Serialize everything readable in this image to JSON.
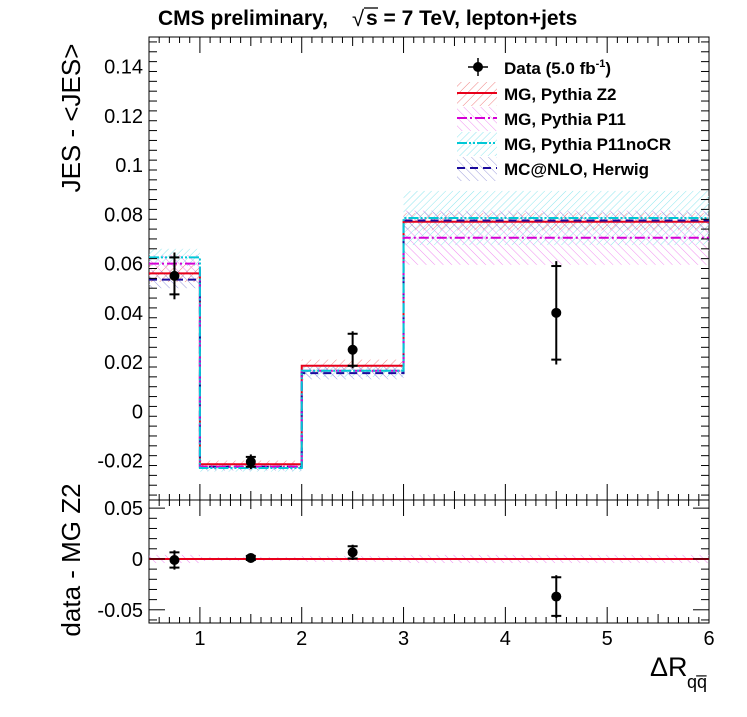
{
  "chart_data": {
    "type": "step",
    "title_left": "CMS preliminary,",
    "title_sqrt": "√",
    "title_right": "s = 7 TeV, lepton+jets",
    "xlabel": "ΔR",
    "xlabel_sub": "qq̅",
    "ylabel_top": "JES - <JES>",
    "ylabel_bottom": "data - MG Z2",
    "x_edges": [
      0.5,
      1,
      2,
      3,
      6
    ],
    "xlim": [
      0.5,
      6
    ],
    "ylim_top": [
      -0.036,
      0.152
    ],
    "ylim_bottom": [
      -0.063,
      0.058
    ],
    "x_ticks": [
      1,
      2,
      3,
      4,
      5,
      6
    ],
    "x_tick_labels": [
      "1",
      "2",
      "3",
      "4",
      "5",
      "6"
    ],
    "y_ticks_top": [
      -0.02,
      0,
      0.02,
      0.04,
      0.06,
      0.08,
      0.1,
      0.12,
      0.14
    ],
    "y_tick_labels_top": [
      "-0.02",
      "0",
      "0.02",
      "0.04",
      "0.06",
      "0.08",
      "0.1",
      "0.12",
      "0.14"
    ],
    "y_ticks_bottom": [
      -0.05,
      0,
      0.05
    ],
    "y_tick_labels_bottom": [
      "-0.05",
      "0",
      "0.05"
    ],
    "series": [
      {
        "name": "MG, Pythia Z2",
        "style": "solid",
        "color": "#e8001a",
        "values": [
          0.056,
          -0.0215,
          0.0185,
          0.077
        ],
        "band": [
          0.0035,
          0.0015,
          0.0025,
          0.0035
        ],
        "band_color": "#f4b3b3"
      },
      {
        "name": "MG, Pythia P11",
        "style": "dashdot",
        "color": "#d400d4",
        "values": [
          0.06,
          -0.0225,
          0.0165,
          0.0705
        ],
        "band": [
          0.0035,
          0.0015,
          0.0025,
          0.011
        ],
        "band_color": "#f0a8f0"
      },
      {
        "name": "MG, Pythia P11noCR",
        "style": "dashdotdot",
        "color": "#00c8d6",
        "values": [
          0.0625,
          -0.023,
          0.0165,
          0.0785
        ],
        "band": [
          0.0035,
          0.0015,
          0.0025,
          0.011
        ],
        "band_color": "#a8eef4"
      },
      {
        "name": "MC@NLO, Herwig",
        "style": "dashed",
        "color": "#1a0a9c",
        "values": [
          0.0535,
          -0.0225,
          0.0155,
          0.0775
        ],
        "band": [
          0.0035,
          0.0015,
          0.0025,
          0.0035
        ],
        "band_color": "#b0b0e0"
      }
    ],
    "data_points": {
      "name": "Data (5.0 fb",
      "sup": "-1",
      "close": ")",
      "x": [
        0.75,
        1.5,
        2.5,
        4.5
      ],
      "y": [
        0.055,
        -0.0205,
        0.025,
        0.04
      ],
      "err_stat": [
        0.0075,
        0.002,
        0.0065,
        0.019
      ],
      "err_tot": [
        0.0095,
        0.003,
        0.0075,
        0.021
      ]
    },
    "ratio_points": {
      "x": [
        0.75,
        1.5,
        2.5,
        4.5
      ],
      "y": [
        -0.001,
        0.001,
        0.0065,
        -0.037
      ],
      "err_stat": [
        0.0075,
        0.002,
        0.006,
        0.019
      ],
      "err_tot": [
        0.0095,
        0.003,
        0.0075,
        0.021
      ]
    },
    "ratio_band": [
      0.004,
      0.002,
      0.003,
      0.004
    ]
  }
}
